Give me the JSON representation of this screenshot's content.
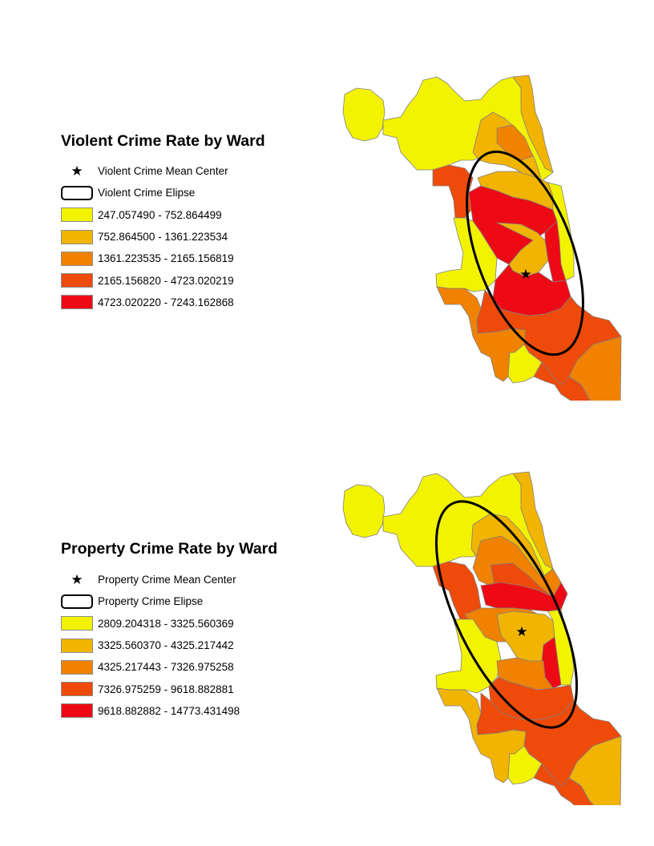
{
  "maps": [
    {
      "id": "violent",
      "title": "Violent Crime Rate by Ward",
      "legend": {
        "mean_center_label": "Violent Crime Mean Center",
        "ellipse_label": "Violent Crime Elipse",
        "classes": [
          {
            "range": "247.057490 - 752.864499",
            "color": "#f3f300"
          },
          {
            "range": "752.864500 - 1361.223534",
            "color": "#f1b400"
          },
          {
            "range": "1361.223535 - 2165.156819",
            "color": "#f08200"
          },
          {
            "range": "2165.156820 - 4723.020219",
            "color": "#ee4a0a"
          },
          {
            "range": "4723.020220 - 7243.162868",
            "color": "#ee0a14"
          }
        ]
      }
    },
    {
      "id": "property",
      "title": "Property Crime Rate by Ward",
      "legend": {
        "mean_center_label": "Property Crime Mean Center",
        "ellipse_label": "Property Crime Elipse",
        "classes": [
          {
            "range": "2809.204318 - 3325.560369",
            "color": "#f3f300"
          },
          {
            "range": "3325.560370 - 4325.217442",
            "color": "#f1b400"
          },
          {
            "range": "4325.217443 - 7326.975258",
            "color": "#f08200"
          },
          {
            "range": "7326.975259 - 9618.882881",
            "color": "#ee4a0a"
          },
          {
            "range": "9618.882882 - 14773.431498",
            "color": "#ee0a14"
          }
        ]
      }
    }
  ],
  "icons": {
    "mean_center": "star-icon",
    "ellipse": "ellipse-outline-icon"
  }
}
